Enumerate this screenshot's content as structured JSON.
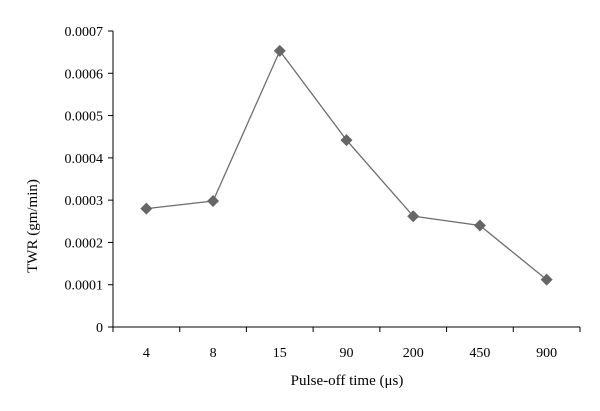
{
  "chart_data": {
    "type": "line",
    "title": "",
    "xlabel": "Pulse-off time (μs)",
    "ylabel": "TWR (gm/min)",
    "categories": [
      "4",
      "8",
      "15",
      "90",
      "200",
      "450",
      "900"
    ],
    "series": [
      {
        "values": [
          0.00028,
          0.000298,
          0.000653,
          0.000442,
          0.000262,
          0.00024,
          0.000112
        ]
      }
    ],
    "ylim": [
      0,
      0.0007
    ],
    "yticks": [
      "0",
      "0.0001",
      "0.0002",
      "0.0003",
      "0.0004",
      "0.0005",
      "0.0006",
      "0.0007"
    ],
    "grid": false,
    "legend": "none",
    "colors": {
      "line": "#6d6d6d",
      "marker": "#666666",
      "axis": "#000000"
    }
  }
}
